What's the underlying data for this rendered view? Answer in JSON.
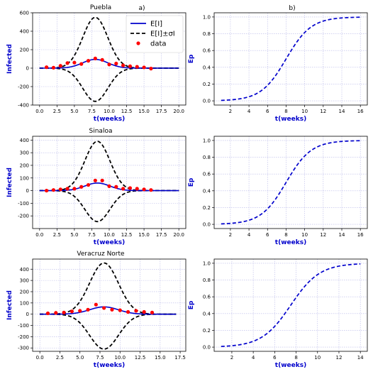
{
  "labels": {
    "panel_a": "a)",
    "panel_b": "b)"
  },
  "chart_data": [
    {
      "type": "line",
      "title": "Puebla",
      "xlabel": "t(weeks)",
      "ylabel": "Infected",
      "xlim": [
        -1,
        21
      ],
      "ylim": [
        -400,
        600
      ],
      "xticks": [
        0.0,
        2.5,
        5.0,
        7.5,
        10.0,
        12.5,
        15.0,
        17.5,
        20.0
      ],
      "xtick_labels": [
        "0.0",
        "2.5",
        "5.0",
        "7.5",
        "10.0",
        "12.5",
        "15.0",
        "17.5",
        "20.0"
      ],
      "yticks": [
        -400,
        -200,
        0,
        200,
        400,
        600
      ],
      "ytick_labels": [
        "-400",
        "-200",
        "0",
        "200",
        "400",
        "600"
      ],
      "grid": true,
      "legend": {
        "position": "top-right",
        "entries": [
          "E[I]",
          "E[I]±σI",
          "data"
        ]
      },
      "curve": {
        "peak_t": 8.0,
        "width": 1.8,
        "mean_peak": 95,
        "upper_peak": 550,
        "lower_peak": -360,
        "t_start": 0,
        "t_end": 20
      },
      "series": [
        {
          "name": "data",
          "x": [
            1,
            2,
            3,
            4,
            5,
            6,
            7,
            8,
            9,
            10,
            11,
            12,
            13,
            14,
            15,
            16
          ],
          "y": [
            10,
            5,
            25,
            55,
            60,
            45,
            80,
            105,
            90,
            40,
            50,
            30,
            20,
            15,
            8,
            -5
          ]
        }
      ]
    },
    {
      "type": "line",
      "title": "",
      "xlabel": "t(weeks)",
      "ylabel": "Ep",
      "xlim": [
        0.25,
        16.75
      ],
      "ylim": [
        -0.05,
        1.05
      ],
      "xticks": [
        2,
        4,
        6,
        8,
        10,
        12,
        14,
        16
      ],
      "xtick_labels": [
        "2",
        "4",
        "6",
        "8",
        "10",
        "12",
        "14",
        "16"
      ],
      "yticks": [
        0.0,
        0.2,
        0.4,
        0.6,
        0.8,
        1.0
      ],
      "ytick_labels": [
        "0.0",
        "0.2",
        "0.4",
        "0.6",
        "0.8",
        "1.0"
      ],
      "grid": true,
      "curve": {
        "mid_t": 8.0,
        "width": 1.35,
        "t_start": 1,
        "t_end": 16
      }
    },
    {
      "type": "line",
      "title": "Sinaloa",
      "xlabel": "t(weeks)",
      "ylabel": "Infected",
      "xlim": [
        -1,
        21
      ],
      "ylim": [
        -300,
        430
      ],
      "xticks": [
        0.0,
        2.5,
        5.0,
        7.5,
        10.0,
        12.5,
        15.0,
        17.5,
        20.0
      ],
      "xtick_labels": [
        "0.0",
        "2.5",
        "5.0",
        "7.5",
        "10.0",
        "12.5",
        "15.0",
        "17.5",
        "20.0"
      ],
      "yticks": [
        -200,
        -100,
        0,
        100,
        200,
        300,
        400
      ],
      "ytick_labels": [
        "-200",
        "-100",
        "0",
        "100",
        "200",
        "300",
        "400"
      ],
      "grid": true,
      "curve": {
        "peak_t": 8.3,
        "width": 1.8,
        "mean_peak": 60,
        "upper_peak": 390,
        "lower_peak": -245,
        "t_start": 0,
        "t_end": 20
      },
      "series": [
        {
          "name": "data",
          "x": [
            1,
            2,
            3,
            4,
            5,
            6,
            7,
            8,
            9,
            10,
            11,
            12,
            13,
            14,
            15,
            16
          ],
          "y": [
            0,
            5,
            10,
            15,
            15,
            30,
            45,
            80,
            80,
            35,
            30,
            15,
            20,
            15,
            10,
            5
          ]
        }
      ]
    },
    {
      "type": "line",
      "title": "",
      "xlabel": "t(weeks)",
      "ylabel": "Ep",
      "xlim": [
        0.25,
        16.75
      ],
      "ylim": [
        -0.05,
        1.05
      ],
      "xticks": [
        2,
        4,
        6,
        8,
        10,
        12,
        14,
        16
      ],
      "xtick_labels": [
        "2",
        "4",
        "6",
        "8",
        "10",
        "12",
        "14",
        "16"
      ],
      "yticks": [
        0.0,
        0.2,
        0.4,
        0.6,
        0.8,
        1.0
      ],
      "ytick_labels": [
        "0.0",
        "0.2",
        "0.4",
        "0.6",
        "0.8",
        "1.0"
      ],
      "grid": true,
      "curve": {
        "mid_t": 8.0,
        "width": 1.35,
        "t_start": 1,
        "t_end": 16
      }
    },
    {
      "type": "line",
      "title": "Veracruz Norte",
      "xlabel": "t(weeks)",
      "ylabel": "Infected",
      "xlim": [
        -0.9,
        18.2
      ],
      "ylim": [
        -330,
        490
      ],
      "xticks": [
        0.0,
        2.5,
        5.0,
        7.5,
        10.0,
        12.5,
        15.0,
        17.5
      ],
      "xtick_labels": [
        "0.0",
        "2.5",
        "5.0",
        "7.5",
        "10.0",
        "12.5",
        "15.0",
        "17.5"
      ],
      "yticks": [
        -300,
        -200,
        -100,
        0,
        100,
        200,
        300,
        400
      ],
      "ytick_labels": [
        "-300",
        "-200",
        "-100",
        "0",
        "100",
        "200",
        "300",
        "400"
      ],
      "grid": true,
      "curve": {
        "peak_t": 8.0,
        "width": 1.8,
        "mean_peak": 65,
        "upper_peak": 455,
        "lower_peak": -310,
        "t_start": 0,
        "t_end": 17
      },
      "series": [
        {
          "name": "data",
          "x": [
            1,
            2,
            3,
            4,
            5,
            6,
            7,
            8,
            9,
            10,
            11,
            12,
            13,
            14
          ],
          "y": [
            8,
            12,
            15,
            25,
            30,
            40,
            85,
            55,
            40,
            35,
            20,
            30,
            20,
            15
          ]
        }
      ]
    },
    {
      "type": "line",
      "title": "",
      "xlabel": "t(weeks)",
      "ylabel": "Ep",
      "xlim": [
        0.35,
        14.65
      ],
      "ylim": [
        -0.05,
        1.05
      ],
      "xticks": [
        2,
        4,
        6,
        8,
        10,
        12,
        14
      ],
      "xtick_labels": [
        "2",
        "4",
        "6",
        "8",
        "10",
        "12",
        "14"
      ],
      "yticks": [
        0.0,
        0.2,
        0.4,
        0.6,
        0.8,
        1.0
      ],
      "ytick_labels": [
        "0.0",
        "0.2",
        "0.4",
        "0.6",
        "0.8",
        "1.0"
      ],
      "grid": true,
      "curve": {
        "mid_t": 7.5,
        "width": 1.35,
        "t_start": 1,
        "t_end": 14
      }
    }
  ]
}
